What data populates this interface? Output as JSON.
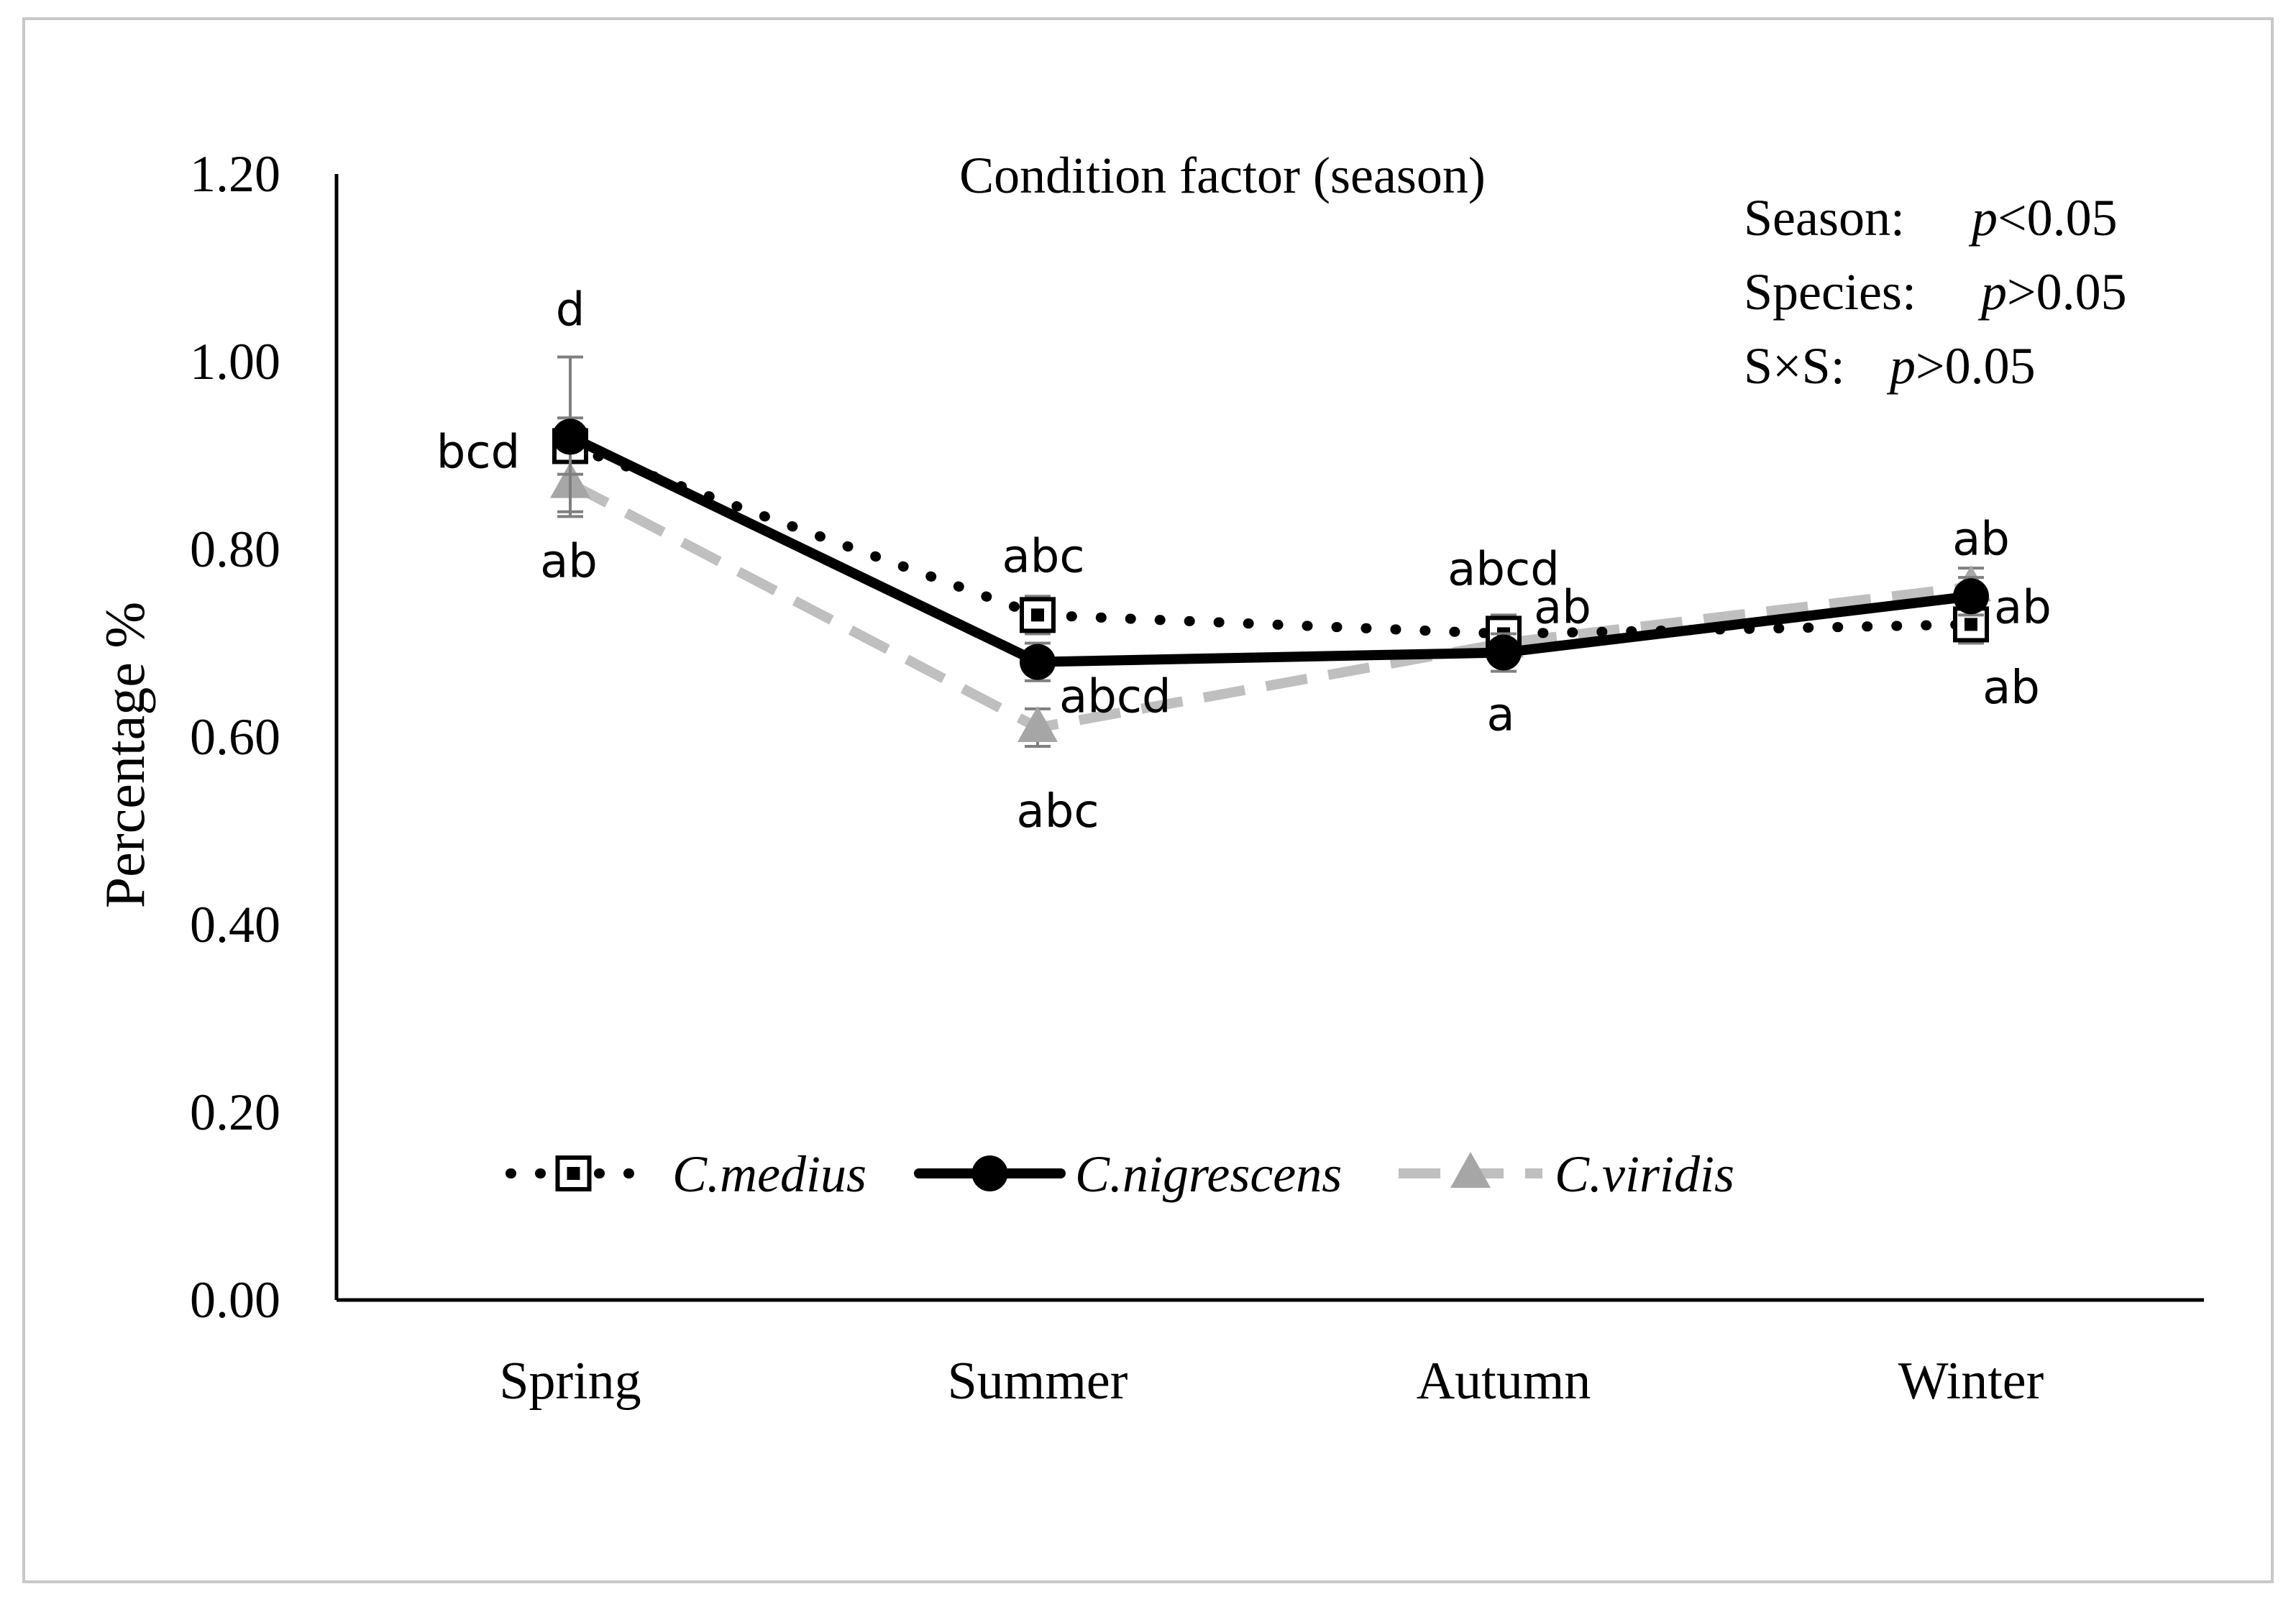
{
  "chart_data": {
    "type": "line",
    "title": "Condition factor (season)",
    "ylabel": "Percentage %",
    "xlabel": "",
    "categories": [
      "Spring",
      "Summer",
      "Autumn",
      "Winter"
    ],
    "ylim": [
      0,
      1.2
    ],
    "yticks": [
      "0.00",
      "0.20",
      "0.40",
      "0.60",
      "0.80",
      "1.00",
      "1.20"
    ],
    "grid": false,
    "legend_position": "bottom-inside",
    "series": [
      {
        "name": "C.medius",
        "values": [
          0.91,
          0.73,
          0.71,
          0.72
        ],
        "errors": [
          0.03,
          0.02,
          0.02,
          0.02
        ],
        "labels": [
          "bcd",
          "abc",
          "abcd",
          "ab"
        ],
        "color": "#000000",
        "line_style": "dotted",
        "marker": "open-square"
      },
      {
        "name": "C.nigrescens",
        "values": [
          0.92,
          0.68,
          0.69,
          0.75
        ],
        "errors": [
          0.085,
          0.02,
          0.02,
          0.02
        ],
        "labels": [
          "d",
          "abcd",
          "a",
          "ab"
        ],
        "color": "#000000",
        "line_style": "solid",
        "marker": "filled-circle"
      },
      {
        "name": "C.viridis",
        "values": [
          0.87,
          0.61,
          0.7,
          0.76
        ],
        "errors": [
          0.03,
          0.02,
          0.02,
          0.02
        ],
        "labels": [
          "ab",
          "abc",
          "ab",
          "ab"
        ],
        "color": "#bfbfbf",
        "line_style": "dashed",
        "marker": "filled-triangle"
      }
    ],
    "annotations": [
      {
        "label": "Season:",
        "value": "<0.05"
      },
      {
        "label": "Species:",
        "value": ">0.05"
      },
      {
        "label": "S×S:",
        "value": ">0.05"
      }
    ],
    "p_symbol": "p"
  }
}
